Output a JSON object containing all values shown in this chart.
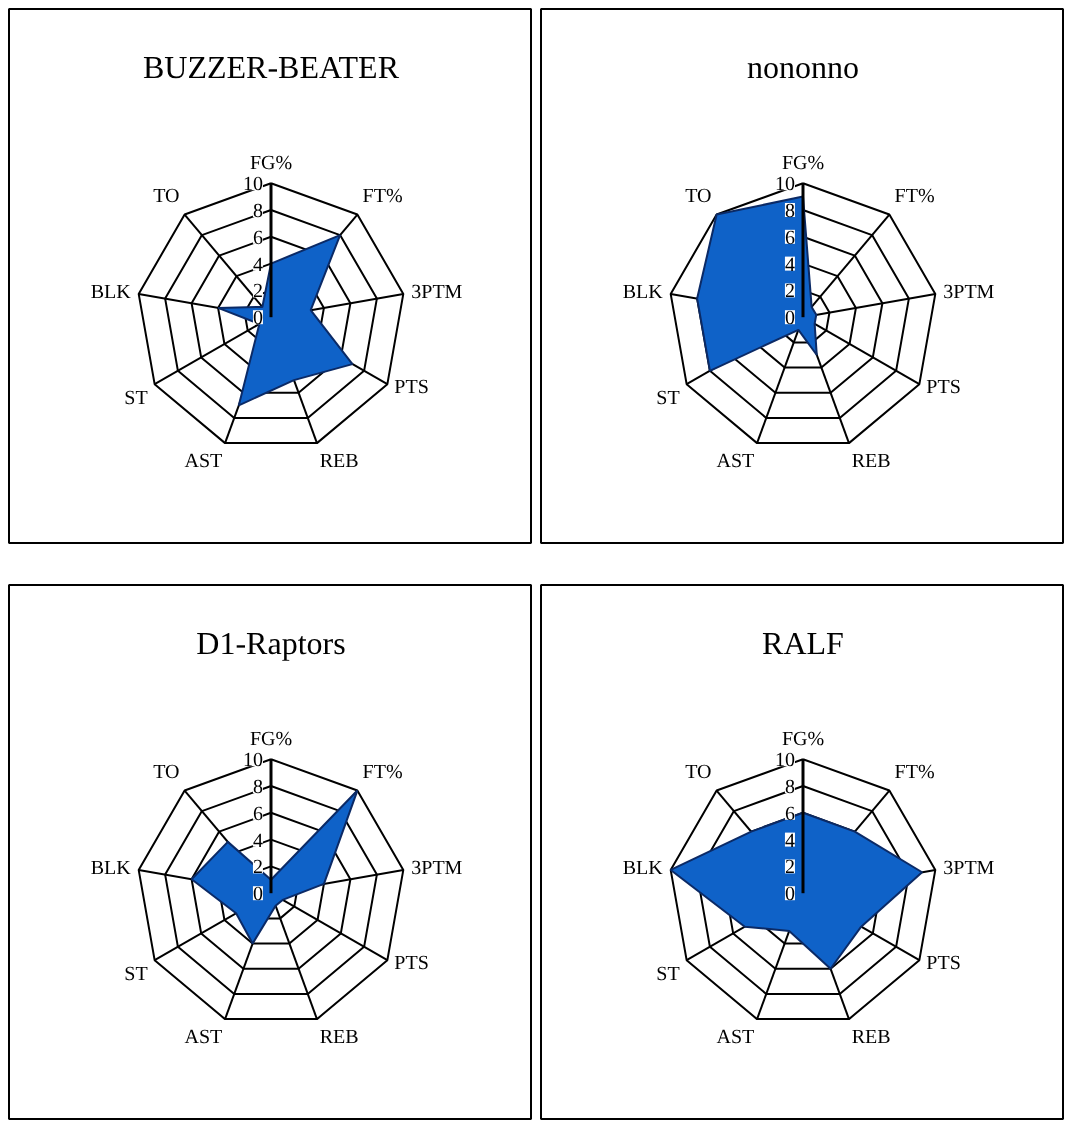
{
  "chart_data": [
    {
      "type": "radar",
      "title": "BUZZER-BEATER",
      "categories": [
        "FG%",
        "FT%",
        "3PTM",
        "PTS",
        "REB",
        "AST",
        "ST",
        "BLK",
        "TO"
      ],
      "ylim": [
        0,
        10
      ],
      "yticks": [
        0,
        2,
        4,
        6,
        8,
        10
      ],
      "grid": true,
      "series": [
        {
          "color": "#0f62c8",
          "values": [
            4,
            8,
            3,
            7,
            5,
            7,
            1,
            4,
            1
          ]
        }
      ]
    },
    {
      "type": "radar",
      "title": "nononno",
      "categories": [
        "FG%",
        "FT%",
        "3PTM",
        "PTS",
        "REB",
        "AST",
        "ST",
        "BLK",
        "TO"
      ],
      "ylim": [
        0,
        10
      ],
      "yticks": [
        0,
        2,
        4,
        6,
        8,
        10
      ],
      "grid": true,
      "series": [
        {
          "color": "#0f62c8",
          "values": [
            9,
            1,
            1,
            1,
            3,
            1,
            8,
            8,
            10
          ]
        }
      ]
    },
    {
      "type": "radar",
      "title": "D1-Raptors",
      "categories": [
        "FG%",
        "FT%",
        "3PTM",
        "PTS",
        "REB",
        "AST",
        "ST",
        "BLK",
        "TO"
      ],
      "ylim": [
        0,
        10
      ],
      "yticks": [
        0,
        2,
        4,
        6,
        8,
        10
      ],
      "grid": true,
      "series": [
        {
          "color": "#0f62c8",
          "values": [
            1,
            10,
            4,
            1,
            1,
            4,
            3,
            6,
            5
          ]
        }
      ]
    },
    {
      "type": "radar",
      "title": "RALF",
      "categories": [
        "FG%",
        "FT%",
        "3PTM",
        "PTS",
        "REB",
        "AST",
        "ST",
        "BLK",
        "TO"
      ],
      "ylim": [
        0,
        10
      ],
      "yticks": [
        0,
        2,
        4,
        6,
        8,
        10
      ],
      "grid": true,
      "series": [
        {
          "color": "#0f62c8",
          "values": [
            6,
            6,
            9,
            5,
            6,
            3,
            5,
            10,
            6
          ]
        }
      ]
    }
  ]
}
